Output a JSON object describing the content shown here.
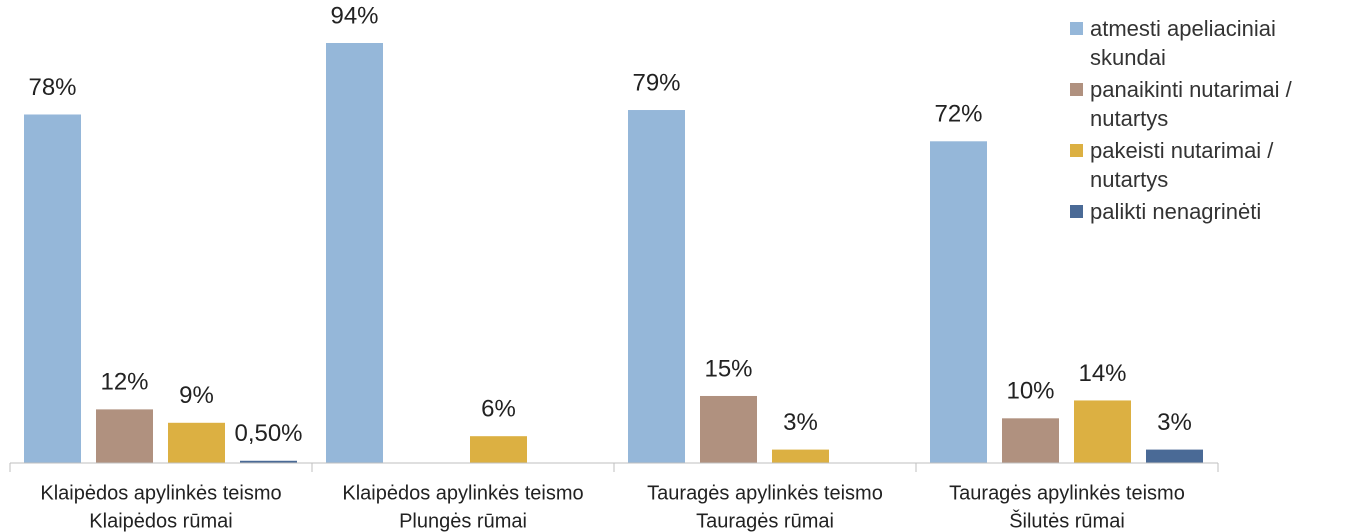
{
  "chart_data": {
    "type": "bar",
    "categories": [
      [
        "Klaipėdos apylinkės teismo",
        "Klaipėdos rūmai"
      ],
      [
        "Klaipėdos apylinkės teismo",
        "Plungės rūmai"
      ],
      [
        "Tauragės apylinkės teismo",
        "Tauragės rūmai"
      ],
      [
        "Tauragės apylinkės teismo",
        "Šilutės rūmai"
      ]
    ],
    "series": [
      {
        "name": "atmesti apeliaciniai skundai",
        "color": "#95b7d9",
        "values": [
          78,
          94,
          79,
          72
        ],
        "value_labels": [
          "78%",
          "94%",
          "79%",
          "72%"
        ]
      },
      {
        "name": "panaikinti nutarimai / nutartys",
        "color": "#b0917f",
        "values": [
          12,
          null,
          15,
          10
        ],
        "value_labels": [
          "12%",
          null,
          "15%",
          "10%"
        ]
      },
      {
        "name": "pakeisti nutarimai / nutartys",
        "color": "#dcb042",
        "values": [
          9,
          6,
          3,
          14
        ],
        "value_labels": [
          "9%",
          "6%",
          "3%",
          "14%"
        ]
      },
      {
        "name": "palikti nenagrinėti",
        "color": "#4a6a96",
        "values": [
          0.5,
          null,
          null,
          3
        ],
        "value_labels": [
          "0,50%",
          null,
          null,
          "3%"
        ]
      }
    ],
    "legend": "right"
  }
}
